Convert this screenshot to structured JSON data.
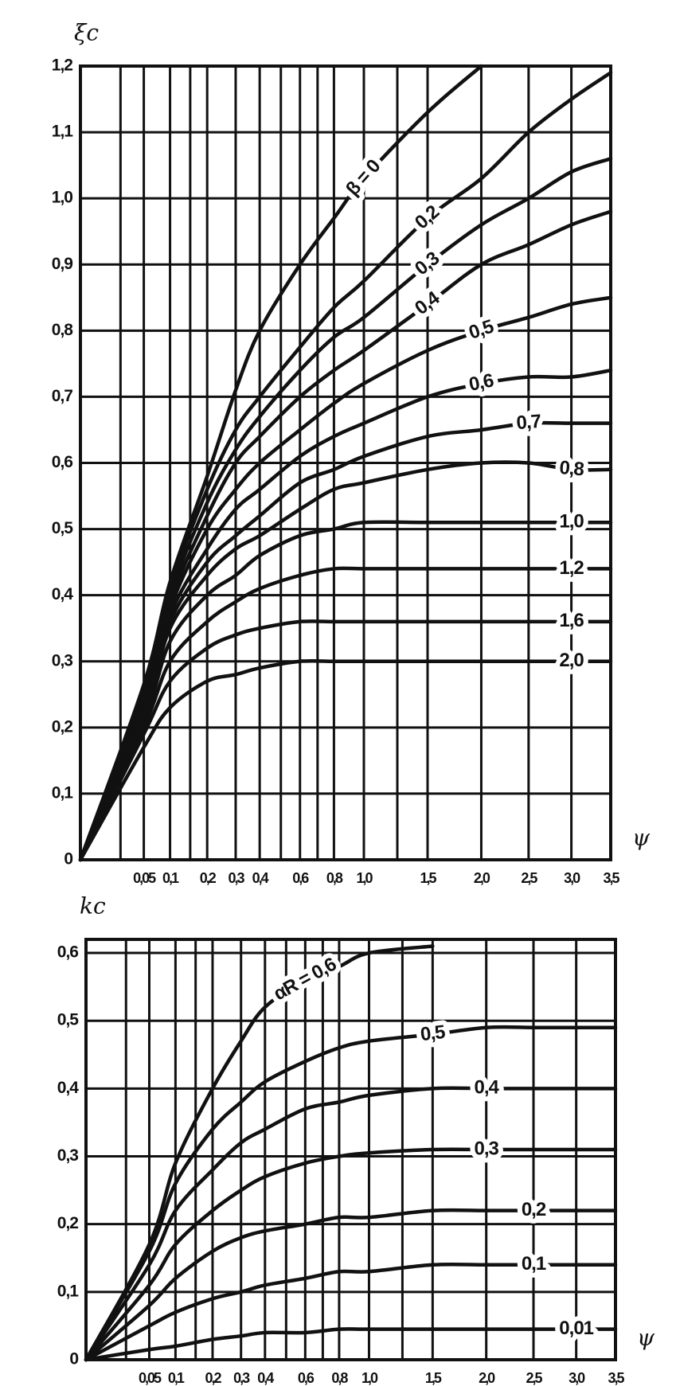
{
  "chart_data": [
    {
      "type": "line",
      "y_label": "ξc",
      "x_label": "ψ",
      "xscale": "sqrt",
      "xlim": [
        0,
        3.5
      ],
      "ylim": [
        0,
        1.2
      ],
      "grid": true,
      "xticks": [
        {
          "value": 0.05,
          "label": "0,05"
        },
        {
          "value": 0.1,
          "label": "0,1"
        },
        {
          "value": 0.2,
          "label": "0,2"
        },
        {
          "value": 0.3,
          "label": "0,3"
        },
        {
          "value": 0.4,
          "label": "0,4"
        },
        {
          "value": 0.6,
          "label": "0,6"
        },
        {
          "value": 0.8,
          "label": "0,8"
        },
        {
          "value": 1.0,
          "label": "1,0"
        },
        {
          "value": 1.5,
          "label": "1,5"
        },
        {
          "value": 2.0,
          "label": "2,0"
        },
        {
          "value": 2.5,
          "label": "2,5"
        },
        {
          "value": 3.0,
          "label": "3,0"
        },
        {
          "value": 3.5,
          "label": "3,5"
        }
      ],
      "xgrid_minor": [
        0.02,
        0.15,
        0.5,
        0.7,
        1.25
      ],
      "yticks": [
        0,
        {
          "value": 0.1,
          "label": "0,1"
        },
        {
          "value": 0.2,
          "label": "0,2"
        },
        {
          "value": 0.3,
          "label": "0,3"
        },
        {
          "value": 0.4,
          "label": "0,4"
        },
        {
          "value": 0.5,
          "label": "0,5"
        },
        {
          "value": 0.6,
          "label": "0,6"
        },
        {
          "value": 0.7,
          "label": "0,7"
        },
        {
          "value": 0.8,
          "label": "0,8"
        },
        {
          "value": 0.9,
          "label": "0,9"
        },
        {
          "value": 1.0,
          "label": "1,0"
        },
        {
          "value": 1.1,
          "label": "1,1"
        },
        {
          "value": 1.2,
          "label": "1,2"
        }
      ],
      "x": [
        0,
        0.05,
        0.1,
        0.2,
        0.3,
        0.4,
        0.6,
        0.8,
        1.0,
        1.5,
        2.0,
        2.5,
        3.0,
        3.5
      ],
      "series": [
        {
          "name": "β = 0",
          "color": "#111111",
          "values": [
            0,
            0.265,
            0.42,
            0.58,
            0.71,
            0.8,
            0.9,
            0.97,
            1.03,
            1.13,
            1.2,
            null,
            null,
            null
          ]
        },
        {
          "name": "0,2",
          "color": "#111111",
          "values": [
            0,
            0.25,
            0.41,
            0.56,
            0.65,
            0.7,
            0.775,
            0.835,
            0.875,
            0.97,
            1.03,
            1.1,
            1.15,
            1.19
          ]
        },
        {
          "name": "0,3",
          "color": "#111111",
          "values": [
            0,
            0.25,
            0.4,
            0.54,
            0.62,
            0.67,
            0.74,
            0.79,
            0.82,
            0.9,
            0.96,
            1.0,
            1.04,
            1.06
          ]
        },
        {
          "name": "0,4",
          "color": "#111111",
          "values": [
            0,
            0.24,
            0.39,
            0.52,
            0.6,
            0.64,
            0.7,
            0.74,
            0.77,
            0.84,
            0.9,
            0.93,
            0.96,
            0.98
          ]
        },
        {
          "name": "0,5",
          "color": "#111111",
          "values": [
            0,
            0.24,
            0.38,
            0.5,
            0.56,
            0.6,
            0.65,
            0.69,
            0.72,
            0.77,
            0.8,
            0.82,
            0.84,
            0.85
          ]
        },
        {
          "name": "0,6",
          "color": "#111111",
          "values": [
            0,
            0.23,
            0.37,
            0.47,
            0.53,
            0.56,
            0.61,
            0.64,
            0.66,
            0.7,
            0.72,
            0.73,
            0.73,
            0.74
          ]
        },
        {
          "name": "0,7",
          "color": "#111111",
          "values": [
            0,
            0.23,
            0.36,
            0.45,
            0.49,
            0.52,
            0.57,
            0.59,
            0.61,
            0.64,
            0.65,
            0.66,
            0.66,
            0.66
          ]
        },
        {
          "name": "0,8",
          "color": "#111111",
          "values": [
            0,
            0.22,
            0.35,
            0.43,
            0.47,
            0.49,
            0.53,
            0.56,
            0.57,
            0.59,
            0.6,
            0.6,
            0.59,
            0.59
          ]
        },
        {
          "name": "1,0",
          "color": "#111111",
          "values": [
            0,
            0.21,
            0.33,
            0.4,
            0.43,
            0.46,
            0.49,
            0.5,
            0.51,
            0.51,
            0.51,
            0.51,
            0.51,
            0.51
          ]
        },
        {
          "name": "1,2",
          "color": "#111111",
          "values": [
            0,
            0.2,
            0.3,
            0.36,
            0.39,
            0.41,
            0.43,
            0.44,
            0.44,
            0.44,
            0.44,
            0.44,
            0.44,
            0.44
          ]
        },
        {
          "name": "1,6",
          "color": "#111111",
          "values": [
            0,
            0.19,
            0.27,
            0.32,
            0.34,
            0.35,
            0.36,
            0.36,
            0.36,
            0.36,
            0.36,
            0.36,
            0.36,
            0.36
          ]
        },
        {
          "name": "2,0",
          "color": "#111111",
          "values": [
            0,
            0.17,
            0.23,
            0.27,
            0.28,
            0.29,
            0.3,
            0.3,
            0.3,
            0.3,
            0.3,
            0.3,
            0.3,
            0.3
          ]
        }
      ]
    },
    {
      "type": "line",
      "y_label": "kc",
      "x_label": "ψ",
      "xscale": "sqrt",
      "xlim": [
        0,
        3.5
      ],
      "ylim": [
        0,
        0.62
      ],
      "grid": true,
      "xticks": [
        {
          "value": 0.05,
          "label": "0,05"
        },
        {
          "value": 0.1,
          "label": "0,1"
        },
        {
          "value": 0.2,
          "label": "0,2"
        },
        {
          "value": 0.3,
          "label": "0,3"
        },
        {
          "value": 0.4,
          "label": "0,4"
        },
        {
          "value": 0.6,
          "label": "0,6"
        },
        {
          "value": 0.8,
          "label": "0,8"
        },
        {
          "value": 1.0,
          "label": "1,0"
        },
        {
          "value": 1.5,
          "label": "1,5"
        },
        {
          "value": 2.0,
          "label": "2,0"
        },
        {
          "value": 2.5,
          "label": "2,5"
        },
        {
          "value": 3.0,
          "label": "3,0"
        },
        {
          "value": 3.5,
          "label": "3,5"
        }
      ],
      "xgrid_minor": [
        0.02,
        0.15,
        0.5,
        0.7,
        1.25
      ],
      "yticks": [
        0,
        {
          "value": 0.1,
          "label": "0,1"
        },
        {
          "value": 0.2,
          "label": "0,2"
        },
        {
          "value": 0.3,
          "label": "0,3"
        },
        {
          "value": 0.4,
          "label": "0,4"
        },
        {
          "value": 0.5,
          "label": "0,5"
        },
        {
          "value": 0.6,
          "label": "0,6"
        }
      ],
      "x": [
        0,
        0.05,
        0.1,
        0.2,
        0.3,
        0.4,
        0.6,
        0.8,
        1.0,
        1.5,
        2.0,
        2.5,
        3.0,
        3.5
      ],
      "series": [
        {
          "name": "αR = 0,6",
          "color": "#111111",
          "values": [
            0,
            0.17,
            0.29,
            0.4,
            0.47,
            0.52,
            0.56,
            0.58,
            0.6,
            0.61,
            null,
            null,
            null,
            null
          ]
        },
        {
          "name": "0,5",
          "color": "#111111",
          "values": [
            0,
            0.16,
            0.26,
            0.34,
            0.38,
            0.41,
            0.44,
            0.46,
            0.47,
            0.48,
            0.49,
            0.49,
            0.49,
            0.49
          ]
        },
        {
          "name": "0,4",
          "color": "#111111",
          "values": [
            0,
            0.14,
            0.22,
            0.28,
            0.32,
            0.34,
            0.37,
            0.38,
            0.39,
            0.4,
            0.4,
            0.4,
            0.4,
            0.4
          ]
        },
        {
          "name": "0,3",
          "color": "#111111",
          "values": [
            0,
            0.11,
            0.17,
            0.22,
            0.25,
            0.27,
            0.29,
            0.3,
            0.305,
            0.31,
            0.31,
            0.31,
            0.31,
            0.31
          ]
        },
        {
          "name": "0,2",
          "color": "#111111",
          "values": [
            0,
            0.08,
            0.12,
            0.16,
            0.18,
            0.19,
            0.2,
            0.21,
            0.21,
            0.22,
            0.22,
            0.22,
            0.22,
            0.22
          ]
        },
        {
          "name": "0,1",
          "color": "#111111",
          "values": [
            0,
            0.05,
            0.07,
            0.09,
            0.1,
            0.11,
            0.12,
            0.13,
            0.13,
            0.14,
            0.14,
            0.14,
            0.14,
            0.14
          ]
        },
        {
          "name": "0,01",
          "color": "#111111",
          "values": [
            0,
            0.015,
            0.02,
            0.03,
            0.035,
            0.04,
            0.04,
            0.045,
            0.045,
            0.045,
            0.045,
            0.045,
            0.045,
            0.045
          ]
        }
      ]
    }
  ]
}
